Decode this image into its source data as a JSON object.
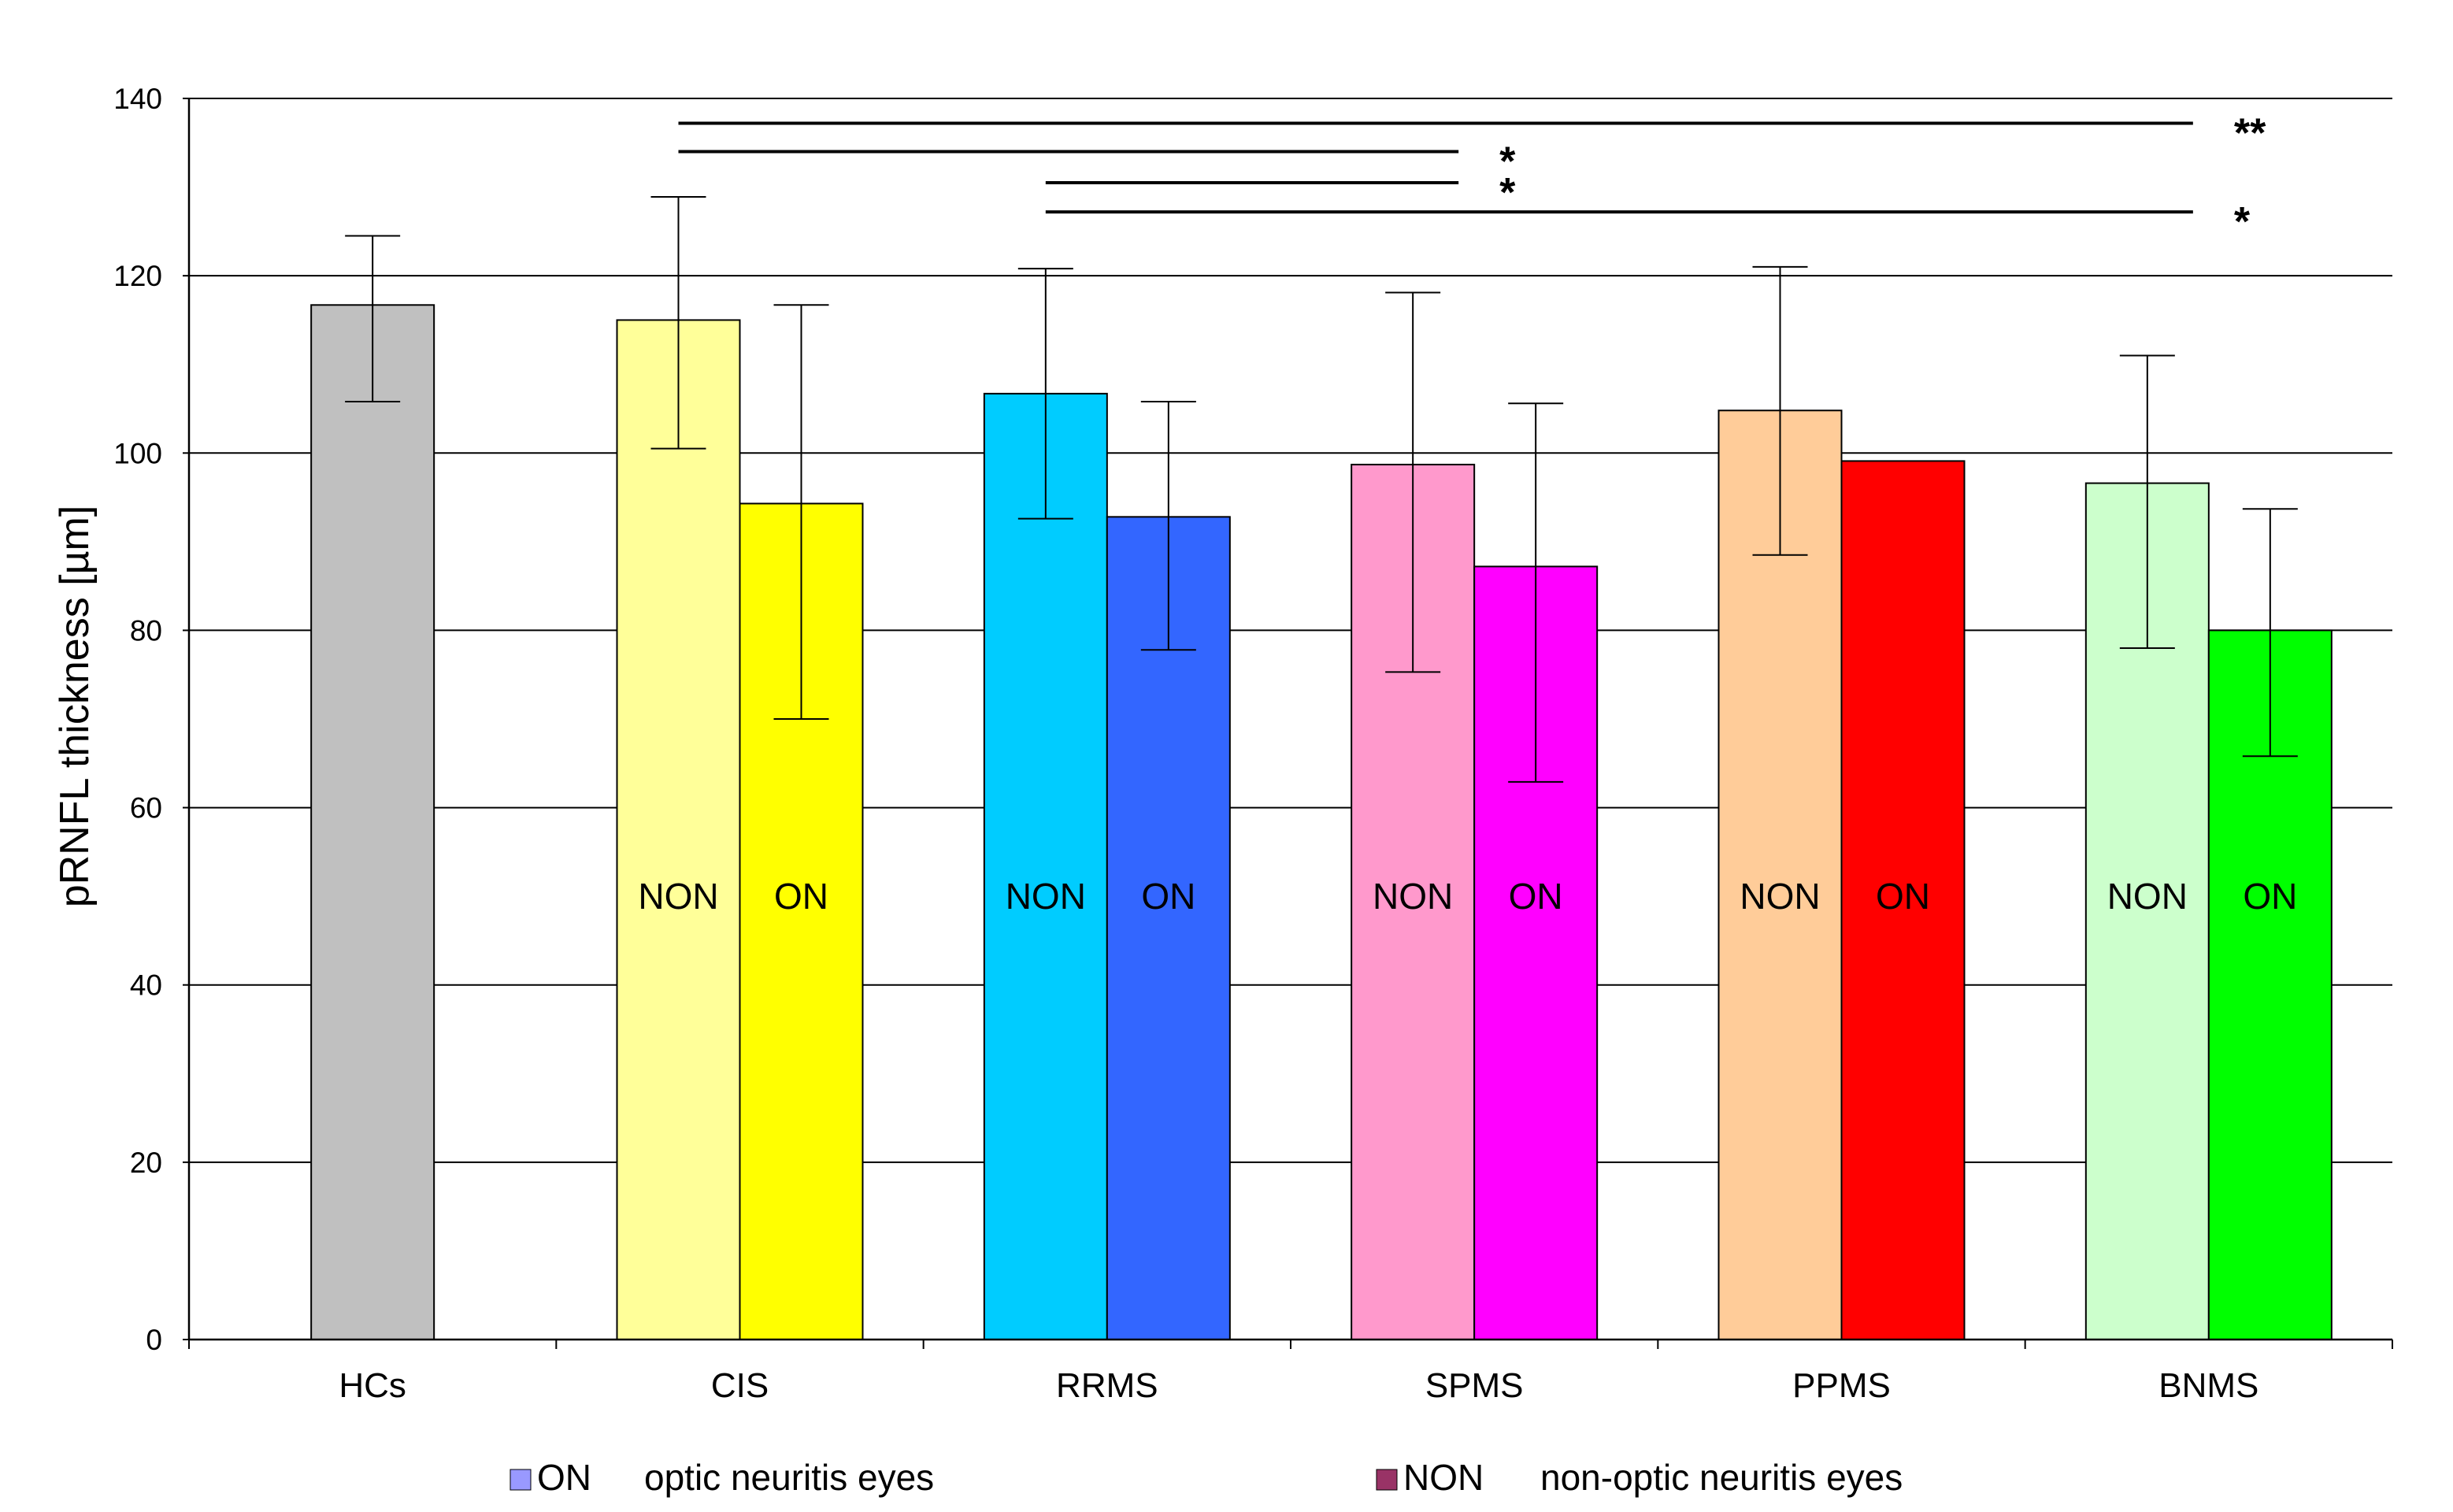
{
  "chart_data": {
    "type": "bar",
    "title": "",
    "xlabel": "",
    "ylabel": "pRNFL thickness [µm]",
    "ylim": [
      0,
      140
    ],
    "yticks": [
      0,
      20,
      40,
      60,
      80,
      100,
      120,
      140
    ],
    "grid": true,
    "categories": [
      "HCs",
      "CIS",
      "RRMS",
      "SPMS",
      "PPMS",
      "BNMS"
    ],
    "bars": [
      {
        "category": "HCs",
        "label": "",
        "value": 116.7,
        "err_low": 105.8,
        "err_high": 124.5,
        "color": "#c0c0c0"
      },
      {
        "category": "CIS",
        "label": "NON",
        "value": 115.0,
        "err_low": 100.5,
        "err_high": 128.9,
        "color": "#ffff99"
      },
      {
        "category": "CIS",
        "label": "ON",
        "value": 94.3,
        "err_low": 70.0,
        "err_high": 116.7,
        "color": "#ffff00"
      },
      {
        "category": "RRMS",
        "label": "NON",
        "value": 106.7,
        "err_low": 92.6,
        "err_high": 120.8,
        "color": "#00ccff"
      },
      {
        "category": "RRMS",
        "label": "ON",
        "value": 92.8,
        "err_low": 77.8,
        "err_high": 105.8,
        "color": "#3366ff"
      },
      {
        "category": "SPMS",
        "label": "NON",
        "value": 98.7,
        "err_low": 75.3,
        "err_high": 118.1,
        "color": "#ff99cc"
      },
      {
        "category": "SPMS",
        "label": "ON",
        "value": 87.2,
        "err_low": 62.9,
        "err_high": 105.6,
        "color": "#ff00ff"
      },
      {
        "category": "PPMS",
        "label": "NON",
        "value": 104.8,
        "err_low": 88.5,
        "err_high": 121.0,
        "color": "#ffcc99"
      },
      {
        "category": "PPMS",
        "label": "ON",
        "value": 99.1,
        "err_low": null,
        "err_high": null,
        "color": "#ff0000"
      },
      {
        "category": "BNMS",
        "label": "NON",
        "value": 96.6,
        "err_low": 78.0,
        "err_high": 111.0,
        "color": "#ccffcc"
      },
      {
        "category": "BNMS",
        "label": "ON",
        "value": 80.0,
        "err_low": 65.8,
        "err_high": 93.7,
        "color": "#00ff00"
      }
    ],
    "significance": [
      {
        "from_bar": 1,
        "to": "BNMS",
        "y": 137.2,
        "label": "**"
      },
      {
        "from_bar": 1,
        "to": "SPMS",
        "y": 134.0,
        "label": "*"
      },
      {
        "from_bar": 3,
        "to": "SPMS",
        "y": 130.5,
        "label": "*"
      },
      {
        "from_bar": 3,
        "to": "BNMS",
        "y": 127.2,
        "label": "*"
      }
    ],
    "legend": [
      {
        "code": "ON",
        "description": "optic neuritis eyes",
        "color": "#9999ff"
      },
      {
        "code": "NON",
        "description": "non-optic neuritis eyes",
        "color": "#993366"
      }
    ],
    "legend_position": "bottom"
  }
}
